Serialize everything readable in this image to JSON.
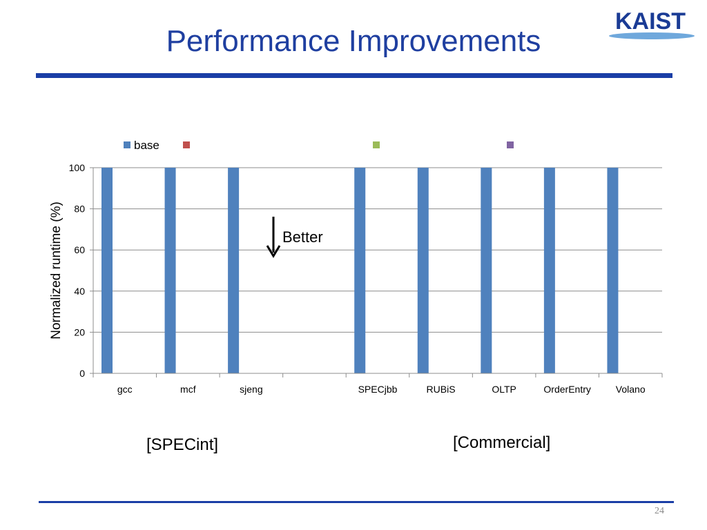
{
  "slide": {
    "title": "Performance Improvements",
    "page_number": "24",
    "logo_text": "KAIST"
  },
  "annotations": {
    "better": "Better",
    "group_spec": "[SPECint]",
    "group_commercial": "[Commercial]"
  },
  "colors": {
    "title": "#1f3fa0",
    "rule": "#1a3ea6",
    "base": "#4f81bd",
    "series2": "#c0504d",
    "series3": "#9bbb59",
    "series4": "#8064a2"
  },
  "chart_data": {
    "type": "bar",
    "ylabel": "Normalized runtime (%)",
    "xlabel": "",
    "ylim": [
      0,
      100
    ],
    "yticks": [
      0,
      20,
      40,
      60,
      80,
      100
    ],
    "grid": true,
    "legend_position": "top",
    "categories": [
      "gcc",
      "mcf",
      "sjeng",
      "",
      "SPECjbb",
      "RUBiS",
      "OLTP",
      "OrderEntry",
      "Volano"
    ],
    "series": [
      {
        "name": "base",
        "color": "#4f81bd",
        "values": [
          100,
          100,
          100,
          null,
          100,
          100,
          100,
          100,
          100
        ]
      },
      {
        "name": "",
        "color": "#c0504d",
        "values": [
          null,
          null,
          null,
          null,
          null,
          null,
          null,
          null,
          null
        ]
      },
      {
        "name": "",
        "color": "#9bbb59",
        "values": [
          null,
          null,
          null,
          null,
          null,
          null,
          null,
          null,
          null
        ]
      },
      {
        "name": "",
        "color": "#8064a2",
        "values": [
          null,
          null,
          null,
          null,
          null,
          null,
          null,
          null,
          null
        ]
      }
    ]
  }
}
